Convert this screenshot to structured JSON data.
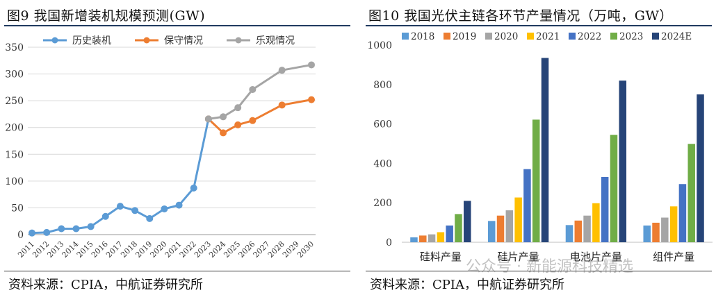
{
  "left": {
    "title": "图9  我国新增装机规模预测(GW)",
    "source": "资料来源：CPIA，中航证券研究所",
    "chart_data": {
      "type": "line",
      "title": "我国新增装机规模预测(GW)",
      "x": [
        "2011",
        "2012",
        "2013",
        "2014",
        "2015",
        "2016",
        "2017",
        "2018",
        "2019",
        "2020",
        "2021",
        "2022",
        "2023",
        "2024",
        "2025",
        "2026",
        "2027",
        "2028",
        "2029",
        "2030"
      ],
      "ylim": [
        0,
        350
      ],
      "yticks": [
        0,
        50,
        100,
        150,
        200,
        250,
        300,
        350
      ],
      "legend_position": "top",
      "series": [
        {
          "name": "历史装机",
          "color": "#5b9bd5",
          "values": [
            3,
            4,
            11,
            11,
            15,
            34,
            53,
            45,
            30,
            48,
            55,
            87,
            216,
            null,
            null,
            null,
            null,
            null,
            null,
            null
          ]
        },
        {
          "name": "保守情况",
          "color": "#ed7d31",
          "values": [
            null,
            null,
            null,
            null,
            null,
            null,
            null,
            null,
            null,
            null,
            null,
            null,
            216,
            190,
            205,
            213,
            null,
            242,
            null,
            252
          ]
        },
        {
          "name": "乐观情况",
          "color": "#a5a5a5",
          "values": [
            null,
            null,
            null,
            null,
            null,
            null,
            null,
            null,
            null,
            null,
            null,
            null,
            216,
            220,
            237,
            271,
            null,
            307,
            null,
            317
          ]
        }
      ]
    }
  },
  "right": {
    "title": "图10  我国光伏主链各环节产量情况（万吨，GW）",
    "source": "资料来源：CPIA，中航证券研究所",
    "watermark": "公众号 · 新能源科技精选",
    "chart_data": {
      "type": "bar",
      "title": "我国光伏主链各环节产量情况（万吨，GW）",
      "categories": [
        "硅料产量",
        "硅片产量",
        "电池片产量",
        "组件产量"
      ],
      "ylim": [
        0,
        1000
      ],
      "yticks": [
        0,
        200,
        400,
        600,
        800,
        1000
      ],
      "legend_position": "top",
      "series": [
        {
          "name": "2018",
          "color": "#5b9bd5",
          "values": [
            25,
            108,
            87,
            85
          ]
        },
        {
          "name": "2019",
          "color": "#ed7d31",
          "values": [
            34,
            135,
            110,
            99
          ]
        },
        {
          "name": "2020",
          "color": "#a5a5a5",
          "values": [
            40,
            162,
            135,
            125
          ]
        },
        {
          "name": "2021",
          "color": "#ffc000",
          "values": [
            51,
            227,
            198,
            182
          ]
        },
        {
          "name": "2022",
          "color": "#4472c4",
          "values": [
            85,
            371,
            331,
            295
          ]
        },
        {
          "name": "2023",
          "color": "#70ad47",
          "values": [
            143,
            622,
            545,
            499
          ]
        },
        {
          "name": "2024E",
          "color": "#264478",
          "values": [
            210,
            935,
            820,
            750
          ]
        }
      ]
    }
  }
}
